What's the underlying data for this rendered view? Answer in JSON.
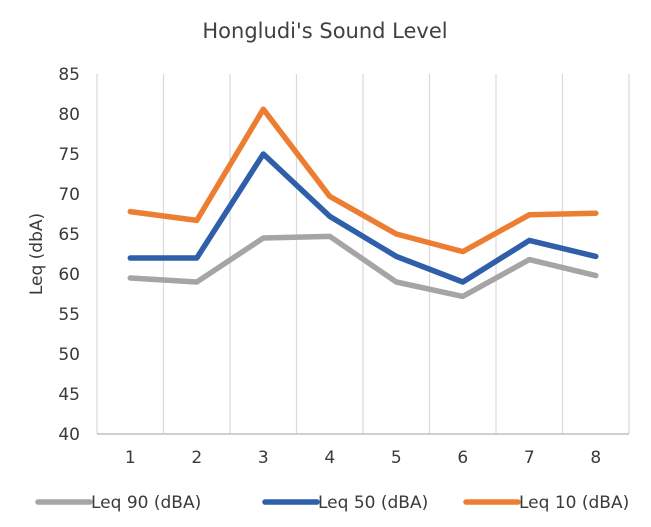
{
  "chart_data": {
    "type": "line",
    "title": "Hongludi's Sound Level",
    "xlabel": "",
    "ylabel": "Leq (dbA)",
    "categories": [
      "1",
      "2",
      "3",
      "4",
      "5",
      "6",
      "7",
      "8"
    ],
    "ylim": [
      40,
      85
    ],
    "yticks": [
      40,
      45,
      50,
      55,
      60,
      65,
      70,
      75,
      80,
      85
    ],
    "grid": "vertical",
    "legend_position": "bottom",
    "series": [
      {
        "name": "Leq 90 (dBA)",
        "color": "#A5A5A5",
        "values": [
          59.5,
          59.0,
          64.5,
          64.7,
          59.0,
          57.2,
          61.8,
          59.8
        ]
      },
      {
        "name": "Leq 50 (dBA)",
        "color": "#2E5FA8",
        "values": [
          62.0,
          62.0,
          75.0,
          67.2,
          62.2,
          59.0,
          64.2,
          62.2
        ]
      },
      {
        "name": "Leq 10 (dBA)",
        "color": "#ED7D31",
        "values": [
          67.8,
          66.7,
          80.6,
          69.7,
          65.0,
          62.8,
          67.4,
          67.6
        ]
      }
    ]
  }
}
